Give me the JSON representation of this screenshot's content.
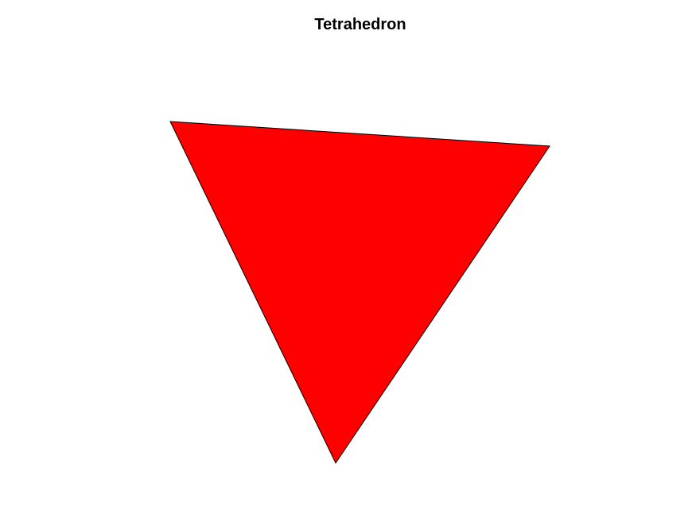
{
  "figure": {
    "title": "Tetrahedron",
    "background": "#ffffff"
  },
  "shape": {
    "kind": "tetrahedron",
    "visible_face_fill": "#ff0000",
    "edge_color": "#000000"
  }
}
